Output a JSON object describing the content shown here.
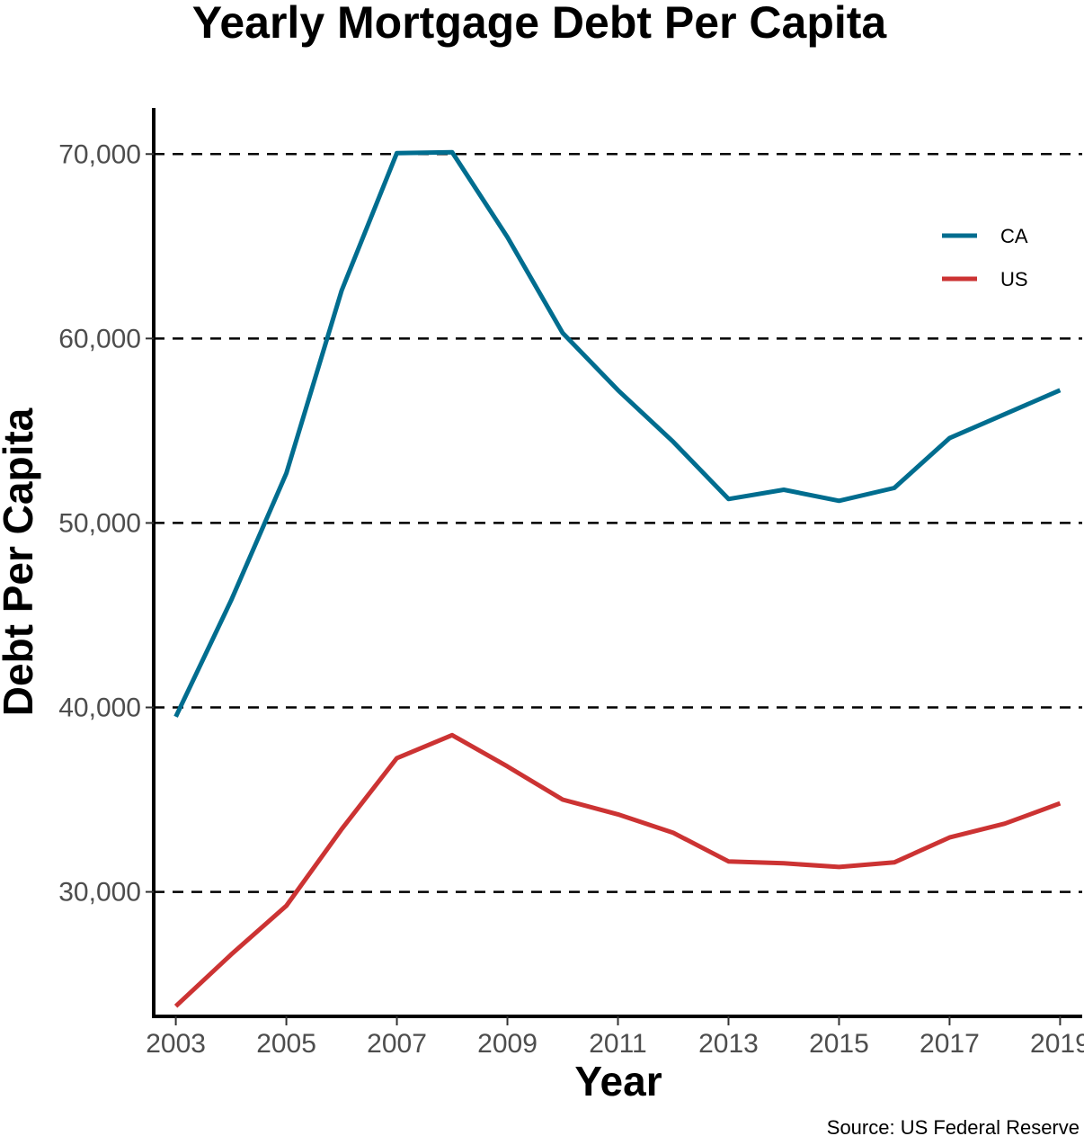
{
  "chart_data": {
    "type": "line",
    "title": "Yearly Mortgage Debt Per Capita",
    "xlabel": "Year",
    "ylabel": "Debt Per Capita",
    "caption": "Source: US Federal Reserve",
    "x": [
      2003,
      2004,
      2005,
      2006,
      2007,
      2008,
      2009,
      2010,
      2011,
      2012,
      2013,
      2014,
      2015,
      2016,
      2017,
      2018,
      2019
    ],
    "x_ticks": [
      "2003",
      "2005",
      "2007",
      "2009",
      "2011",
      "2013",
      "2015",
      "2017",
      "2019"
    ],
    "y_ticks": [
      "30,000",
      "40,000",
      "50,000",
      "60,000",
      "70,000"
    ],
    "xlim": [
      2002.6,
      2019.4
    ],
    "ylim": [
      23250,
      72500
    ],
    "grid": "horizontal dashed",
    "legend_position": "top-right",
    "series": [
      {
        "name": "CA",
        "color": "#006d8f",
        "values": [
          39500,
          45800,
          52700,
          62600,
          70050,
          70100,
          65500,
          60300,
          57200,
          54400,
          51300,
          51800,
          51200,
          51900,
          54600,
          55900,
          57200
        ]
      },
      {
        "name": "US",
        "color": "#cc3333",
        "values": [
          23800,
          26600,
          29250,
          33400,
          37250,
          38500,
          36800,
          35000,
          34200,
          33200,
          31650,
          31550,
          31350,
          31600,
          32950,
          33700,
          34800
        ]
      }
    ]
  }
}
